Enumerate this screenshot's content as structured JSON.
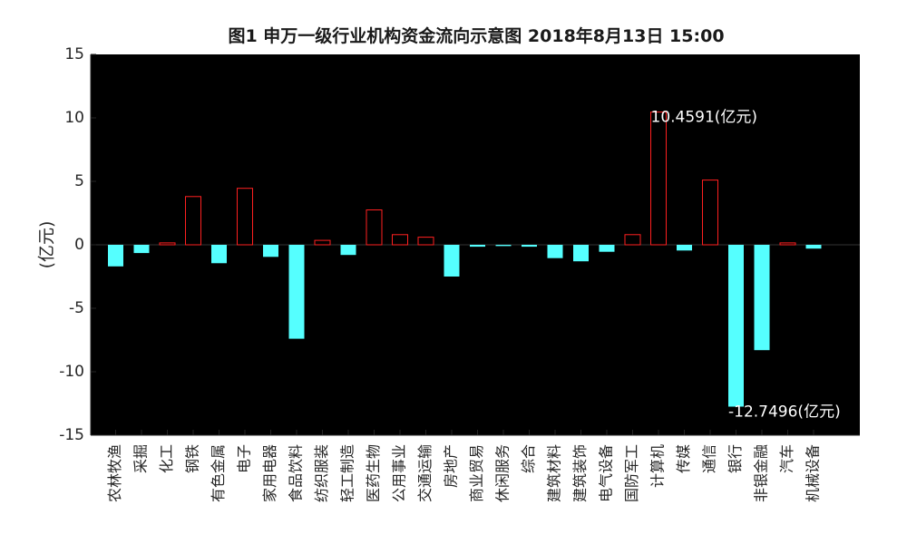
{
  "chart_data": {
    "type": "bar",
    "title": "图1 申万一级行业机构资金流向示意图 2018年8月13日 15:00",
    "xlabel": "",
    "ylabel": "(亿元)",
    "ylim": [
      -15,
      15
    ],
    "yticks": [
      15,
      10,
      5,
      0,
      -5,
      -10,
      -15
    ],
    "grid": false,
    "legend": "none",
    "colors": {
      "background": "#000000",
      "positive_edge": "#ff2020",
      "negative_fill": "#55ffff",
      "zero_line": "#333333",
      "axis": "#262626"
    },
    "categories": [
      "农林牧渔",
      "采掘",
      "化工",
      "钢铁",
      "有色金属",
      "电子",
      "家用电器",
      "食品饮料",
      "纺织服装",
      "轻工制造",
      "医药生物",
      "公用事业",
      "交通运输",
      "房地产",
      "商业贸易",
      "休闲服务",
      "综合",
      "建筑材料",
      "建筑装饰",
      "电气设备",
      "国防军工",
      "计算机",
      "传媒",
      "通信",
      "银行",
      "非银金融",
      "汽车",
      "机械设备"
    ],
    "values": [
      -1.7,
      -0.65,
      0.15,
      3.8,
      -1.45,
      4.45,
      -0.95,
      -7.4,
      0.35,
      -0.8,
      2.75,
      0.8,
      0.6,
      -2.5,
      -0.15,
      -0.1,
      -0.15,
      -1.05,
      -1.3,
      -0.55,
      0.8,
      10.4591,
      -0.45,
      5.1,
      -12.7496,
      -8.3,
      0.15,
      -0.3
    ],
    "annotations": [
      {
        "category": "计算机",
        "text": "10.4591(亿元)",
        "value": 10.4591
      },
      {
        "category": "银行",
        "text": "-12.7496(亿元)",
        "value": -12.7496
      }
    ]
  }
}
